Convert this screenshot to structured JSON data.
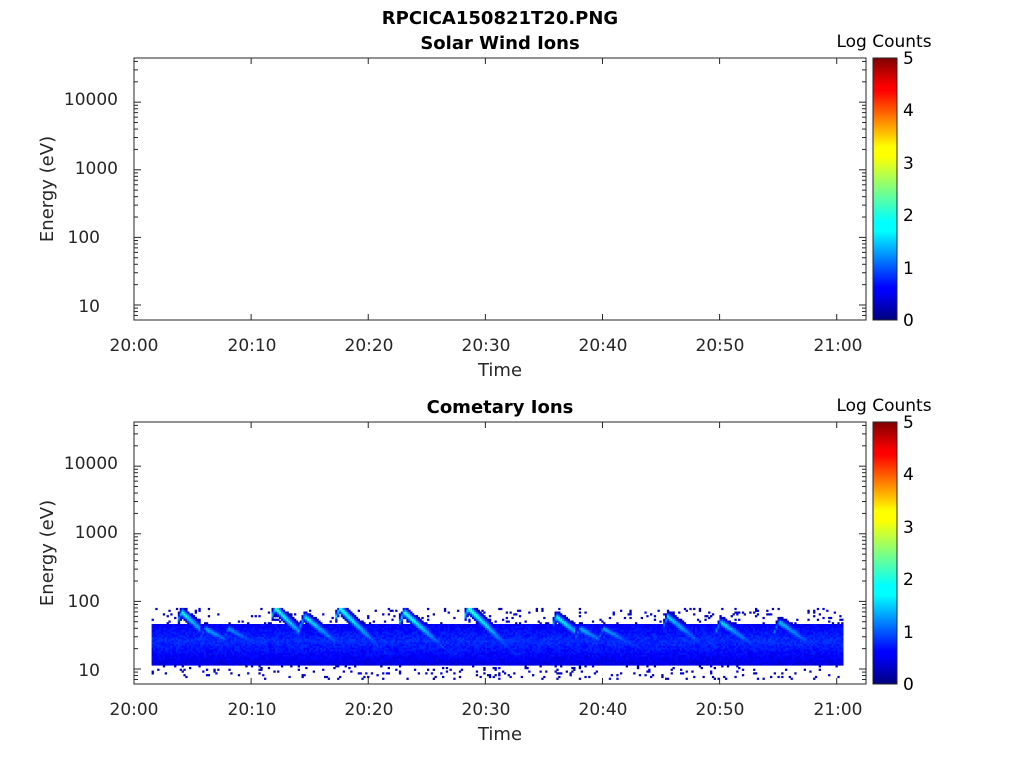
{
  "figure_title": "RPCICA150821T20.PNG",
  "chart_data": [
    {
      "type": "heatmap",
      "title": "Solar Wind Ions",
      "xlabel": "Time",
      "ylabel": "Energy (eV)",
      "x_ticks": [
        "20:00",
        "20:10",
        "20:20",
        "20:30",
        "20:40",
        "20:50",
        "21:00"
      ],
      "y_ticks": [
        "10",
        "100",
        "1000",
        "10000"
      ],
      "y_tick_values": [
        10,
        100,
        1000,
        10000
      ],
      "y_scale": "log",
      "ylim": [
        6,
        45000
      ],
      "xlim": [
        "20:00",
        "21:02.5"
      ],
      "colorbar": {
        "label": "Log Counts",
        "ticks": [
          "0",
          "1",
          "2",
          "3",
          "4",
          "5"
        ],
        "range": [
          0,
          5
        ],
        "colormap": "jet"
      },
      "signal": []
    },
    {
      "type": "heatmap",
      "title": "Cometary Ions",
      "xlabel": "Time",
      "ylabel": "Energy (eV)",
      "x_ticks": [
        "20:00",
        "20:10",
        "20:20",
        "20:30",
        "20:40",
        "20:50",
        "21:00"
      ],
      "y_ticks": [
        "10",
        "100",
        "1000",
        "10000"
      ],
      "y_tick_values": [
        10,
        100,
        1000,
        10000
      ],
      "y_scale": "log",
      "ylim": [
        6,
        45000
      ],
      "xlim": [
        "20:00",
        "21:02.5"
      ],
      "colorbar": {
        "label": "Log Counts",
        "ticks": [
          "0",
          "1",
          "2",
          "3",
          "4",
          "5"
        ],
        "range": [
          0,
          5
        ],
        "colormap": "jet"
      },
      "data_time_range": [
        "20:01.5",
        "21:00.5"
      ],
      "band_energy_range_eV": [
        15,
        45
      ],
      "bursts": [
        {
          "time": "20:04",
          "peak_energy_eV": 70,
          "max_log_counts": 2.0
        },
        {
          "time": "20:06",
          "peak_energy_eV": 40,
          "max_log_counts": 1.5
        },
        {
          "time": "20:08",
          "peak_energy_eV": 40,
          "max_log_counts": 1.4
        },
        {
          "time": "20:12",
          "peak_energy_eV": 80,
          "max_log_counts": 2.2
        },
        {
          "time": "20:14.5",
          "peak_energy_eV": 60,
          "max_log_counts": 2.0
        },
        {
          "time": "20:17.5",
          "peak_energy_eV": 80,
          "max_log_counts": 2.3
        },
        {
          "time": "20:23",
          "peak_energy_eV": 70,
          "max_log_counts": 2.3
        },
        {
          "time": "20:28.5",
          "peak_energy_eV": 80,
          "max_log_counts": 2.4
        },
        {
          "time": "20:36",
          "peak_energy_eV": 60,
          "max_log_counts": 2.0
        },
        {
          "time": "20:38",
          "peak_energy_eV": 40,
          "max_log_counts": 1.6
        },
        {
          "time": "20:40",
          "peak_energy_eV": 40,
          "max_log_counts": 1.5
        },
        {
          "time": "20:45.5",
          "peak_energy_eV": 60,
          "max_log_counts": 1.8
        },
        {
          "time": "20:50",
          "peak_energy_eV": 50,
          "max_log_counts": 1.8
        },
        {
          "time": "20:55",
          "peak_energy_eV": 50,
          "max_log_counts": 1.7
        }
      ],
      "sparse_counts_energy_range_eV": [
        7,
        80
      ]
    }
  ]
}
